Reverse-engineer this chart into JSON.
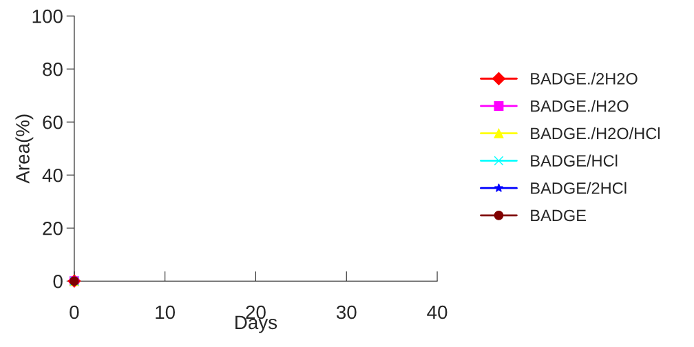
{
  "chart_data": {
    "type": "line",
    "xlabel": "Days",
    "ylabel": "Area(%)",
    "x": [
      0
    ],
    "series": [
      {
        "name": "BADGE./2H2O",
        "color": "#ff0000",
        "values": [
          0
        ],
        "marker": "diamond"
      },
      {
        "name": "BADGE./H2O",
        "color": "#ff00ff",
        "values": [
          0
        ],
        "marker": "square"
      },
      {
        "name": "BADGE./H2O/HCl",
        "color": "#ffff00",
        "values": [
          0
        ],
        "marker": "triangle"
      },
      {
        "name": "BADGE/HCl",
        "color": "#00ffff",
        "values": [
          0
        ],
        "marker": "cross"
      },
      {
        "name": "BADGE/2HCl",
        "color": "#0000ff",
        "values": [
          0
        ],
        "marker": "star"
      },
      {
        "name": "BADGE",
        "color": "#800000",
        "values": [
          0
        ],
        "marker": "circle"
      }
    ],
    "xlim": [
      0,
      40
    ],
    "xticks": [
      0,
      10,
      20,
      30,
      40
    ],
    "ylim": [
      0,
      100
    ],
    "yticks": [
      0,
      20,
      40,
      60,
      80,
      100
    ],
    "grid": false,
    "legend": "right"
  }
}
